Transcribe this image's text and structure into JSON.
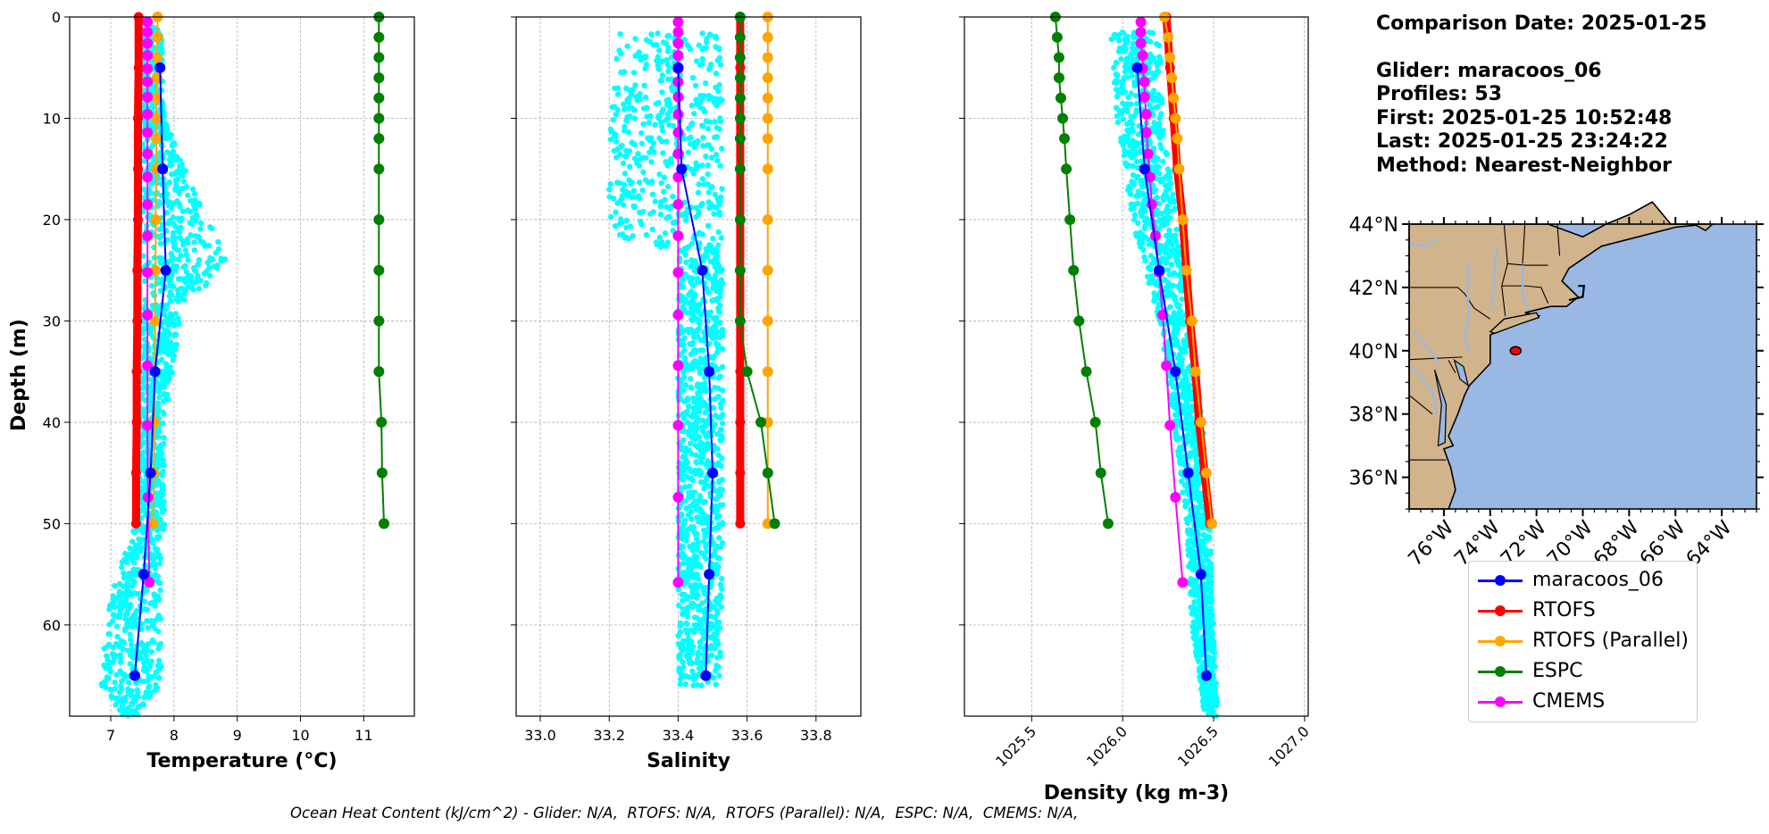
{
  "info": {
    "comparison_date": "Comparison Date: 2025-01-25",
    "glider": "Glider: maracoos_06",
    "profiles": "Profiles: 53",
    "first": "First: 2025-01-25 10:52:48",
    "last": "Last: 2025-01-25 23:24:22",
    "method": "Method: Nearest-Neighbor"
  },
  "ohc_text": "Ocean Heat Content (kJ/cm^2) - Glider: N/A,  RTOFS: N/A,  RTOFS (Parallel): N/A,  ESPC: N/A,  CMEMS: N/A,",
  "legend": [
    {
      "label": "maracoos_06",
      "color": "#0000ff"
    },
    {
      "label": "RTOFS",
      "color": "#ff0000"
    },
    {
      "label": "RTOFS (Parallel)",
      "color": "#ffa500"
    },
    {
      "label": "ESPC",
      "color": "#008000"
    },
    {
      "label": "CMEMS",
      "color": "#ff00ff"
    }
  ],
  "colors": {
    "glider_raw": "#00ffff",
    "glider_mean": "#0000ff",
    "rtofs": "#ff0000",
    "rtofs_parallel": "#ffa500",
    "espc": "#008000",
    "cmems": "#ff00ff",
    "land": "#d2b48c",
    "ocean": "#99b8e3",
    "grid": "#b0b0b0"
  },
  "chart_data": [
    {
      "type": "line",
      "xlabel": "Temperature (°C)",
      "ylabel": "Depth (m)",
      "xlim": [
        6.35,
        11.8
      ],
      "ylim": [
        69,
        0
      ],
      "xticks": [
        7,
        8,
        9,
        10,
        11
      ],
      "yticks": [
        0,
        10,
        20,
        30,
        40,
        50,
        60
      ],
      "grid": true,
      "raw_range": [
        {
          "d": 1,
          "lo": 7.5,
          "hi": 7.8
        },
        {
          "d": 10,
          "lo": 7.5,
          "hi": 7.85
        },
        {
          "d": 17,
          "lo": 7.5,
          "hi": 8.3
        },
        {
          "d": 24,
          "lo": 7.5,
          "hi": 8.85
        },
        {
          "d": 30,
          "lo": 7.5,
          "hi": 8.1
        },
        {
          "d": 40,
          "lo": 7.45,
          "hi": 7.85
        },
        {
          "d": 50,
          "lo": 7.4,
          "hi": 7.85
        },
        {
          "d": 56,
          "lo": 7.05,
          "hi": 7.8
        },
        {
          "d": 61,
          "lo": 6.9,
          "hi": 7.8
        },
        {
          "d": 66,
          "lo": 6.85,
          "hi": 7.8
        },
        {
          "d": 69,
          "lo": 7.2,
          "hi": 7.4
        }
      ],
      "series": [
        {
          "name": "maracoos_06",
          "color": "#0000ff",
          "depth": [
            5,
            15,
            25,
            35,
            45,
            55,
            65
          ],
          "values": [
            7.78,
            7.82,
            7.87,
            7.7,
            7.63,
            7.52,
            7.38
          ]
        },
        {
          "name": "RTOFS",
          "color": "#ff0000",
          "depth": [
            0,
            5,
            10,
            15,
            20,
            25,
            30,
            35,
            40,
            45,
            50
          ],
          "values": [
            7.44,
            7.44,
            7.43,
            7.43,
            7.43,
            7.42,
            7.42,
            7.41,
            7.41,
            7.4,
            7.4
          ]
        },
        {
          "name": "RTOFS (Parallel)",
          "color": "#ffa500",
          "depth": [
            0,
            2,
            4,
            6,
            8,
            10,
            12,
            15,
            20,
            25,
            30,
            35,
            40,
            45,
            50
          ],
          "values": [
            7.74,
            7.74,
            7.73,
            7.73,
            7.72,
            7.72,
            7.72,
            7.72,
            7.71,
            7.71,
            7.7,
            7.7,
            7.69,
            7.68,
            7.67
          ]
        },
        {
          "name": "ESPC",
          "color": "#008000",
          "depth": [
            0,
            2,
            4,
            6,
            8,
            10,
            12,
            15,
            20,
            25,
            30,
            35,
            40,
            45,
            50
          ],
          "values": [
            11.24,
            11.24,
            11.24,
            11.24,
            11.24,
            11.24,
            11.24,
            11.24,
            11.24,
            11.24,
            11.24,
            11.24,
            11.28,
            11.29,
            11.32
          ]
        },
        {
          "name": "CMEMS",
          "color": "#ff00ff",
          "depth": [
            0.5,
            1.5,
            2.6,
            3.8,
            5.1,
            6.4,
            7.9,
            9.6,
            11.4,
            13.5,
            15.8,
            18.5,
            21.6,
            25.2,
            29.4,
            34.4,
            40.3,
            47.4,
            55.8
          ],
          "values": [
            7.58,
            7.58,
            7.58,
            7.58,
            7.58,
            7.58,
            7.58,
            7.58,
            7.58,
            7.58,
            7.58,
            7.58,
            7.58,
            7.58,
            7.58,
            7.58,
            7.58,
            7.59,
            7.61
          ]
        }
      ]
    },
    {
      "type": "line",
      "xlabel": "Salinity",
      "xlim": [
        32.93,
        33.93
      ],
      "ylim": [
        69,
        0
      ],
      "xticks": [
        33.0,
        33.2,
        33.4,
        33.6,
        33.8
      ],
      "grid": true,
      "raw_range": [
        {
          "d": 1.5,
          "lo": 33.22,
          "hi": 33.53
        },
        {
          "d": 5,
          "lo": 33.22,
          "hi": 33.53
        },
        {
          "d": 12,
          "lo": 33.2,
          "hi": 33.53
        },
        {
          "d": 22,
          "lo": 33.2,
          "hi": 33.53
        },
        {
          "d": 23,
          "lo": 33.4,
          "hi": 33.53
        },
        {
          "d": 45,
          "lo": 33.4,
          "hi": 33.53
        },
        {
          "d": 55,
          "lo": 33.4,
          "hi": 33.53
        },
        {
          "d": 66,
          "lo": 33.4,
          "hi": 33.52
        }
      ],
      "series": [
        {
          "name": "maracoos_06",
          "color": "#0000ff",
          "depth": [
            5,
            15,
            25,
            35,
            45,
            55,
            65
          ],
          "values": [
            33.4,
            33.41,
            33.47,
            33.49,
            33.5,
            33.49,
            33.48
          ]
        },
        {
          "name": "RTOFS",
          "color": "#ff0000",
          "depth": [
            0,
            5,
            10,
            15,
            20,
            25,
            30,
            35,
            40,
            45,
            50
          ],
          "values": [
            33.58,
            33.58,
            33.58,
            33.58,
            33.58,
            33.58,
            33.58,
            33.58,
            33.58,
            33.58,
            33.58
          ]
        },
        {
          "name": "RTOFS (Parallel)",
          "color": "#ffa500",
          "depth": [
            0,
            2,
            4,
            6,
            8,
            10,
            12,
            15,
            20,
            25,
            30,
            35,
            40,
            45,
            50
          ],
          "values": [
            33.66,
            33.66,
            33.66,
            33.66,
            33.66,
            33.66,
            33.66,
            33.66,
            33.66,
            33.66,
            33.66,
            33.66,
            33.66,
            33.66,
            33.66
          ]
        },
        {
          "name": "ESPC",
          "color": "#008000",
          "depth": [
            0,
            2,
            4,
            6,
            8,
            10,
            12,
            15,
            20,
            25,
            30,
            35,
            40,
            45,
            50
          ],
          "values": [
            33.58,
            33.58,
            33.58,
            33.58,
            33.58,
            33.58,
            33.58,
            33.58,
            33.58,
            33.58,
            33.58,
            33.6,
            33.64,
            33.66,
            33.68
          ]
        },
        {
          "name": "CMEMS",
          "color": "#ff00ff",
          "depth": [
            0.5,
            1.5,
            2.6,
            3.8,
            5.1,
            6.4,
            7.9,
            9.6,
            11.4,
            13.5,
            15.8,
            18.5,
            21.6,
            25.2,
            29.4,
            34.4,
            40.3,
            47.4,
            55.8
          ],
          "values": [
            33.4,
            33.4,
            33.4,
            33.4,
            33.4,
            33.4,
            33.4,
            33.4,
            33.4,
            33.4,
            33.4,
            33.4,
            33.4,
            33.4,
            33.4,
            33.4,
            33.4,
            33.4,
            33.4
          ]
        }
      ]
    },
    {
      "type": "line",
      "xlabel": "Density (kg m-3)",
      "xlim": [
        1025.13,
        1027.02
      ],
      "ylim": [
        69,
        0
      ],
      "xticks": [
        1025.5,
        1026.0,
        1026.5,
        1027.0
      ],
      "grid": true,
      "raw_range": [
        {
          "d": 1.5,
          "lo": 1025.93,
          "hi": 1026.2
        },
        {
          "d": 10,
          "lo": 1025.97,
          "hi": 1026.22
        },
        {
          "d": 20,
          "lo": 1026.05,
          "hi": 1026.3
        },
        {
          "d": 30,
          "lo": 1026.2,
          "hi": 1026.38
        },
        {
          "d": 40,
          "lo": 1026.28,
          "hi": 1026.44
        },
        {
          "d": 50,
          "lo": 1026.35,
          "hi": 1026.48
        },
        {
          "d": 60,
          "lo": 1026.38,
          "hi": 1026.5
        },
        {
          "d": 69,
          "lo": 1026.45,
          "hi": 1026.52
        }
      ],
      "series": [
        {
          "name": "maracoos_06",
          "color": "#0000ff",
          "depth": [
            5,
            15,
            25,
            35,
            45,
            55,
            65
          ],
          "values": [
            1026.08,
            1026.12,
            1026.2,
            1026.29,
            1026.36,
            1026.43,
            1026.46
          ]
        },
        {
          "name": "RTOFS",
          "color": "#ff0000",
          "depth": [
            0,
            5,
            10,
            15,
            20,
            25,
            30,
            35,
            40,
            45,
            50
          ],
          "values": [
            1026.24,
            1026.26,
            1026.28,
            1026.3,
            1026.33,
            1026.35,
            1026.37,
            1026.4,
            1026.42,
            1026.45,
            1026.48
          ]
        },
        {
          "name": "RTOFS (Parallel)",
          "color": "#ffa500",
          "depth": [
            0,
            2,
            4,
            6,
            8,
            10,
            12,
            15,
            20,
            25,
            30,
            35,
            40,
            45,
            50
          ],
          "values": [
            1026.23,
            1026.25,
            1026.26,
            1026.27,
            1026.28,
            1026.29,
            1026.3,
            1026.31,
            1026.33,
            1026.35,
            1026.38,
            1026.4,
            1026.43,
            1026.46,
            1026.49
          ]
        },
        {
          "name": "ESPC",
          "color": "#008000",
          "depth": [
            0,
            2,
            4,
            6,
            8,
            10,
            12,
            15,
            20,
            25,
            30,
            35,
            40,
            45,
            50
          ],
          "values": [
            1025.63,
            1025.64,
            1025.65,
            1025.65,
            1025.66,
            1025.67,
            1025.68,
            1025.69,
            1025.71,
            1025.73,
            1025.76,
            1025.8,
            1025.85,
            1025.88,
            1025.92
          ]
        },
        {
          "name": "CMEMS",
          "color": "#ff00ff",
          "depth": [
            0.5,
            1.5,
            2.6,
            3.8,
            5.1,
            6.4,
            7.9,
            9.6,
            11.4,
            13.5,
            15.8,
            18.5,
            21.6,
            25.2,
            29.4,
            34.4,
            40.3,
            47.4,
            55.8
          ],
          "values": [
            1026.1,
            1026.1,
            1026.1,
            1026.11,
            1026.11,
            1026.12,
            1026.12,
            1026.13,
            1026.13,
            1026.14,
            1026.15,
            1026.16,
            1026.18,
            1026.2,
            1026.22,
            1026.24,
            1026.26,
            1026.29,
            1026.33
          ]
        }
      ]
    }
  ],
  "map": {
    "lon_range": [
      -77.5,
      -62.5
    ],
    "lat_range": [
      35,
      44
    ],
    "lat_labels": [
      "36°N",
      "38°N",
      "40°N",
      "42°N",
      "44°N"
    ],
    "lat_values": [
      36,
      38,
      40,
      42,
      44
    ],
    "lon_labels": [
      "76°W",
      "74°W",
      "72°W",
      "70°W",
      "68°W",
      "66°W",
      "64°W"
    ],
    "lon_values": [
      -76,
      -74,
      -72,
      -70,
      -68,
      -66,
      -64
    ],
    "glider_track_center": [
      -72.9,
      40.0
    ]
  }
}
